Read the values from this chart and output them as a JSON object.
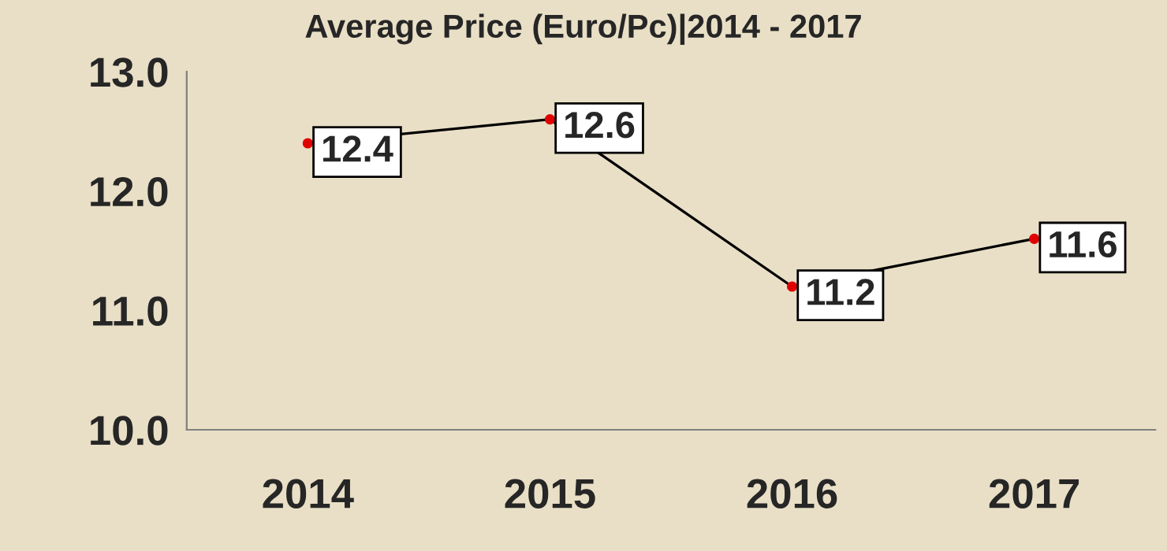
{
  "chart_data": {
    "type": "line",
    "title": "Average Price (Euro/Pc)|2014 - 2017",
    "categories": [
      "2014",
      "2015",
      "2016",
      "2017"
    ],
    "series": [
      {
        "color": "#000000",
        "values": [
          12.4,
          12.6,
          11.2,
          11.6
        ]
      }
    ],
    "ylim": [
      10.0,
      13.0
    ],
    "yticks": [
      {
        "value": 10.0,
        "label": "10.0"
      },
      {
        "value": 11.0,
        "label": "11.0"
      },
      {
        "value": 12.0,
        "label": "12.0"
      },
      {
        "value": 13.0,
        "label": "13.0"
      }
    ],
    "marker": "circle",
    "data_labels": true,
    "grid": false,
    "legend": false
  }
}
